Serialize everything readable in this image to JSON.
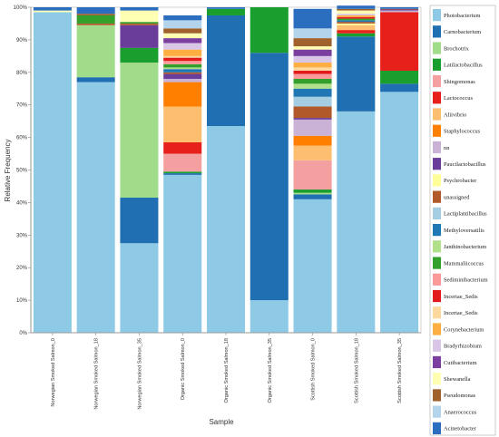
{
  "chart_data": {
    "type": "bar",
    "stacked": true,
    "xlabel": "Sample",
    "ylabel": "Relative Frequency",
    "ylim": [
      0,
      100
    ],
    "y_ticks": [
      "0%",
      "10%",
      "20%",
      "30%",
      "40%",
      "50%",
      "60%",
      "70%",
      "80%",
      "90%",
      "100%"
    ],
    "grid": false,
    "legend_position": "right",
    "categories": [
      "Norwegian Smoked Salmon_0",
      "Norwegian Smoked Salmon_18",
      "Norwegian Smoked Salmon_35",
      "Organic Smoked Salmon_0",
      "Organic Smoked Salmon_18",
      "Organic Smoked Salmon_35",
      "Scottish Smoked Salmon_0",
      "Scottish Smoked Salmon_18",
      "Scottish Smoked Salmon_35"
    ],
    "series": [
      {
        "name": "Photobacterium",
        "color": "#8ecae6",
        "values": [
          98.5,
          77,
          27.5,
          48.5,
          63.5,
          10,
          41,
          68,
          74
        ]
      },
      {
        "name": "Carnobacterium",
        "color": "#1f6fb2",
        "values": [
          0,
          1.5,
          14,
          0.5,
          34,
          76,
          1.5,
          23,
          2.5
        ]
      },
      {
        "name": "Brochotrix",
        "color": "#a0dc8a",
        "values": [
          0,
          16,
          41.5,
          0,
          0,
          0,
          0.5,
          0,
          0
        ]
      },
      {
        "name": "Latilactobacillus",
        "color": "#1a9e2e",
        "values": [
          0,
          0,
          4.5,
          0.5,
          2,
          14,
          1,
          1,
          4
        ]
      },
      {
        "name": "Shingomonas",
        "color": "#f4a0a0",
        "values": [
          0,
          0,
          0,
          5.5,
          0,
          0,
          9,
          0,
          0
        ]
      },
      {
        "name": "Lactococcus",
        "color": "#e8201c",
        "values": [
          0,
          0,
          0,
          3.5,
          0,
          0,
          0,
          1,
          18
        ]
      },
      {
        "name": "Aliivibrio",
        "color": "#fdbf6f",
        "values": [
          0,
          0,
          0,
          11,
          0,
          0,
          4.5,
          1.5,
          0
        ]
      },
      {
        "name": "Staphylococcus",
        "color": "#ff7f00",
        "values": [
          0,
          0,
          0,
          7.5,
          0,
          0,
          3,
          0,
          0
        ]
      },
      {
        "name": "nn",
        "color": "#cab2d6",
        "values": [
          0,
          0,
          0,
          1,
          0,
          0,
          5,
          0,
          0.5
        ]
      },
      {
        "name": "Paucilactobacillus",
        "color": "#6a3d9a",
        "values": [
          0,
          0,
          7,
          1.5,
          0,
          0,
          0.5,
          0,
          0.3
        ]
      },
      {
        "name": "Psychrobacter",
        "color": "#ffff99",
        "values": [
          0,
          0,
          0,
          0,
          0,
          0,
          0,
          0.5,
          0
        ]
      },
      {
        "name": "unassigned",
        "color": "#b15928",
        "values": [
          0,
          0.5,
          0.5,
          0.5,
          0,
          0,
          3.5,
          0.5,
          0.2
        ]
      },
      {
        "name": "Lactiplantibacillus",
        "color": "#a6cee3",
        "values": [
          0,
          0,
          0,
          0,
          0,
          0,
          3,
          0,
          0
        ]
      },
      {
        "name": "Methyloversatilis",
        "color": "#1f78b4",
        "values": [
          0,
          0,
          0,
          1,
          0,
          0,
          2.5,
          0.5,
          0
        ]
      },
      {
        "name": "Janthinobacterium",
        "color": "#b2df8a",
        "values": [
          0,
          0,
          0,
          0.5,
          0,
          0,
          1.5,
          0,
          0
        ]
      },
      {
        "name": "Mammaliicoccus",
        "color": "#33a02c",
        "values": [
          0,
          2.5,
          0.5,
          1,
          0,
          0,
          1.5,
          0.5,
          0
        ]
      },
      {
        "name": "Sediminibacterium",
        "color": "#fb9a99",
        "values": [
          0,
          0,
          0,
          1,
          0,
          0,
          1.5,
          0,
          0
        ]
      },
      {
        "name": "Incertae_Sedis",
        "color": "#e31a1c",
        "values": [
          0,
          0,
          0,
          1,
          0,
          0,
          1,
          0.5,
          0
        ]
      },
      {
        "name": "Incertae_Sedis",
        "color": "#fdd9a0",
        "values": [
          0,
          0,
          0,
          0.5,
          0,
          0,
          1,
          0,
          0
        ]
      },
      {
        "name": "Corynebacterium",
        "color": "#ffae42",
        "values": [
          0,
          0,
          0,
          2,
          0,
          0,
          1.5,
          0.5,
          0
        ]
      },
      {
        "name": "Bradyrhizobium",
        "color": "#d9c6e6",
        "values": [
          0,
          0,
          0,
          2,
          0,
          0,
          2,
          0.5,
          0
        ]
      },
      {
        "name": "Cutibacterium",
        "color": "#7b3fa0",
        "values": [
          0,
          0,
          0,
          1.5,
          0,
          0,
          2,
          0,
          0
        ]
      },
      {
        "name": "Shewanella",
        "color": "#ffffb3",
        "values": [
          0.5,
          0,
          3.5,
          1.5,
          0,
          0,
          1,
          1,
          0
        ]
      },
      {
        "name": "Pseudomonas",
        "color": "#a0612c",
        "values": [
          0,
          0.5,
          0,
          1.5,
          0,
          0,
          2.5,
          0.5,
          0
        ]
      },
      {
        "name": "Anaerococcus",
        "color": "#b4d4ec",
        "values": [
          0,
          0,
          0,
          2.5,
          0,
          0,
          3,
          0,
          0
        ]
      },
      {
        "name": "Acinetobacter",
        "color": "#2b6ec0",
        "values": [
          1,
          2,
          1,
          1.5,
          0.5,
          0,
          6,
          1,
          0.5
        ]
      }
    ]
  }
}
